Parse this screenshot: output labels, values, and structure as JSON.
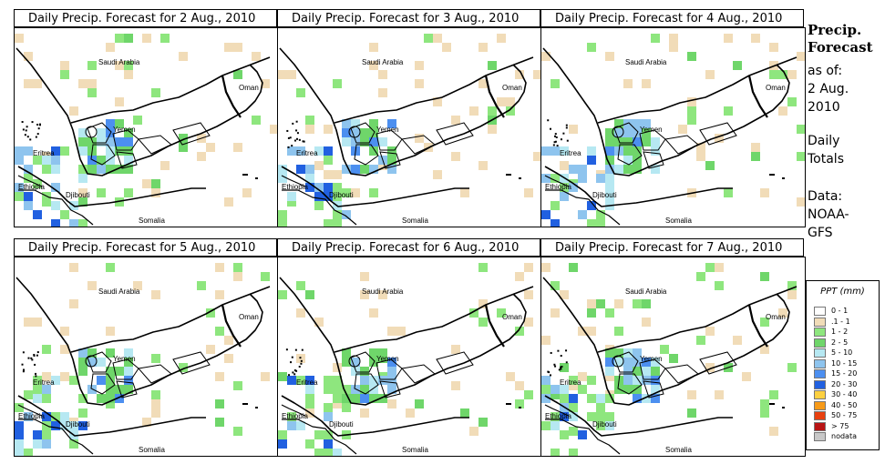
{
  "panels": [
    {
      "title": "Daily Precip. Forecast for  2 Aug., 2010"
    },
    {
      "title": "Daily Precip. Forecast for  3 Aug., 2010"
    },
    {
      "title": "Daily Precip. Forecast for  4 Aug., 2010"
    },
    {
      "title": "Daily Precip. Forecast for  5 Aug., 2010"
    },
    {
      "title": "Daily Precip. Forecast for  6 Aug., 2010"
    },
    {
      "title": "Daily Precip. Forecast for  7 Aug., 2010"
    }
  ],
  "map_labels": {
    "saudi_arabia": "Saudi Arabia",
    "oman": "Oman",
    "yemen": "Yemen",
    "eritrea": "Eritrea",
    "ethiopia": "Ethiopia",
    "djibouti": "Djibouti",
    "somalia": "Somalia"
  },
  "side": {
    "title_line1": "Precip.",
    "title_line2": "Forecast",
    "asof": "as of:",
    "date_line1": "2 Aug.",
    "date_line2": "2010",
    "daily1": "Daily",
    "daily2": "Totals",
    "data1": "Data:",
    "data2": "NOAA-",
    "data3": "GFS"
  },
  "legend": {
    "title": "PPT (mm)",
    "items": [
      {
        "label": "0 - 1",
        "color": "#ffffff"
      },
      {
        "label": ".1 - 1",
        "color": "#f1dcb8"
      },
      {
        "label": "1 - 2",
        "color": "#8ee67e"
      },
      {
        "label": "2 - 5",
        "color": "#6fd66a"
      },
      {
        "label": "5 - 10",
        "color": "#b6e8f2"
      },
      {
        "label": "10 - 15",
        "color": "#8ec4ee"
      },
      {
        "label": "15 - 20",
        "color": "#4c8ff0"
      },
      {
        "label": "20 - 30",
        "color": "#2160e0"
      },
      {
        "label": "30 - 40",
        "color": "#fcd040"
      },
      {
        "label": "40 - 50",
        "color": "#f79a18"
      },
      {
        "label": "50 - 75",
        "color": "#e8400f"
      },
      {
        "label": "> 75",
        "color": "#b81414"
      },
      {
        "label": "nodata",
        "color": "#c8c8c8"
      }
    ]
  }
}
